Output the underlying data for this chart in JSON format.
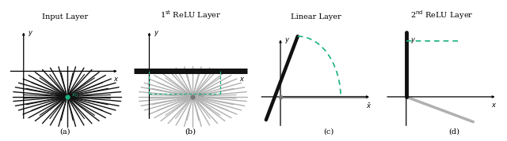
{
  "titles": [
    "Input Layer",
    "1$^{\\mathrm{st}}$ ReLU Layer",
    "Linear Layer",
    "2$^{\\mathrm{nd}}$ ReLU Layer"
  ],
  "subtitles": [
    "(a)",
    "(b)",
    "(c)",
    "(d)"
  ],
  "bg_color": "#ffffff",
  "line_black": "#111111",
  "line_gray": "#b0b0b0",
  "line_teal": "#1aaf80",
  "dot_teal": "#1aaf80",
  "dot_gray": "#777777"
}
